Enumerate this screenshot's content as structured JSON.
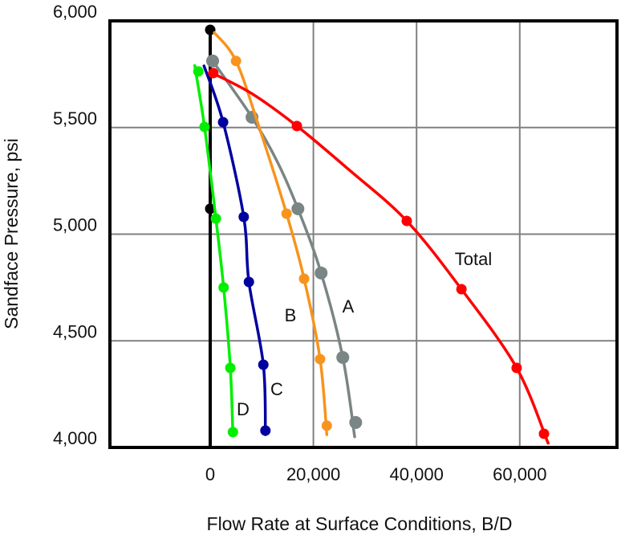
{
  "chart_data": {
    "type": "line",
    "title": "",
    "xlabel": "Flow Rate at Surface Conditions, B/D",
    "ylabel": "Sandface Pressure, psi",
    "xlim": [
      -19500,
      79000
    ],
    "ylim": [
      4000,
      6000
    ],
    "grid": true,
    "legend": "inline labels",
    "x_ticks": [
      0,
      20000,
      40000,
      60000
    ],
    "x_tick_labels": [
      "0",
      "20,000",
      "40,000",
      "60,000"
    ],
    "y_ticks": [
      4000,
      4500,
      5000,
      5500,
      6000
    ],
    "y_tick_labels": [
      "4,000",
      "4,500",
      "5,000",
      "5,500",
      "6,000"
    ],
    "series": [
      {
        "name": "Total",
        "label": "Total",
        "color": "#ff0000",
        "points": [
          [
            600,
            5755
          ],
          [
            16800,
            5507
          ],
          [
            38100,
            5062
          ],
          [
            48700,
            4742
          ],
          [
            59400,
            4373
          ],
          [
            64700,
            4064
          ]
        ],
        "curve": [
          [
            0,
            5760
          ],
          [
            8000,
            5660
          ],
          [
            16800,
            5507
          ],
          [
            27000,
            5300
          ],
          [
            38100,
            5062
          ],
          [
            48700,
            4742
          ],
          [
            59400,
            4373
          ],
          [
            65500,
            4020
          ]
        ],
        "label_pos": [
          590,
          330
        ]
      },
      {
        "name": "A",
        "label": "A",
        "color": "#7a8585",
        "points": [
          [
            470,
            5812
          ],
          [
            8100,
            5548
          ],
          [
            17000,
            5119
          ],
          [
            21500,
            4818
          ],
          [
            25700,
            4422
          ],
          [
            28200,
            4117
          ]
        ],
        "curve": [
          [
            470,
            5812
          ],
          [
            8100,
            5548
          ],
          [
            13000,
            5340
          ],
          [
            17000,
            5119
          ],
          [
            21500,
            4818
          ],
          [
            25700,
            4422
          ],
          [
            28000,
            4050
          ]
        ],
        "label_pos": [
          434,
          389
        ]
      },
      {
        "name": "B",
        "label": "B",
        "color": "#f7941d",
        "points": [
          [
            5000,
            5812
          ],
          [
            14800,
            5096
          ],
          [
            18200,
            4791
          ],
          [
            21300,
            4414
          ],
          [
            22600,
            4102
          ]
        ],
        "curve": [
          [
            800,
            5945
          ],
          [
            5000,
            5812
          ],
          [
            9500,
            5500
          ],
          [
            14800,
            5096
          ],
          [
            18200,
            4791
          ],
          [
            21300,
            4414
          ],
          [
            22600,
            4060
          ]
        ],
        "label_pos": [
          362,
          400
        ]
      },
      {
        "name": "C",
        "label": "C",
        "color": "#0000a0",
        "points": [
          [
            2500,
            5525
          ],
          [
            6500,
            5081
          ],
          [
            7500,
            4776
          ],
          [
            10300,
            4388
          ],
          [
            10700,
            4079
          ]
        ],
        "curve": [
          [
            -1200,
            5789
          ],
          [
            2500,
            5525
          ],
          [
            6500,
            5081
          ],
          [
            7500,
            4776
          ],
          [
            10300,
            4388
          ],
          [
            10700,
            4060
          ]
        ],
        "label_pos": [
          345,
          492
        ]
      },
      {
        "name": "D",
        "label": "D",
        "color": "#00ee00",
        "points": [
          [
            -2300,
            5763
          ],
          [
            -1100,
            5503
          ],
          [
            1100,
            5073
          ],
          [
            2600,
            4750
          ],
          [
            3900,
            4373
          ],
          [
            4400,
            4072
          ]
        ],
        "curve": [
          [
            -3000,
            5790
          ],
          [
            -1100,
            5503
          ],
          [
            1100,
            5073
          ],
          [
            2600,
            4750
          ],
          [
            3900,
            4373
          ],
          [
            4400,
            4055
          ]
        ],
        "label_pos": [
          303,
          517
        ]
      },
      {
        "name": "Zero-rate reference",
        "label": "",
        "color": "#000000",
        "points": [
          [
            0,
            5958
          ],
          [
            0,
            5119
          ]
        ],
        "curve": [
          [
            0,
            5958
          ],
          [
            0,
            4000
          ]
        ]
      }
    ]
  }
}
